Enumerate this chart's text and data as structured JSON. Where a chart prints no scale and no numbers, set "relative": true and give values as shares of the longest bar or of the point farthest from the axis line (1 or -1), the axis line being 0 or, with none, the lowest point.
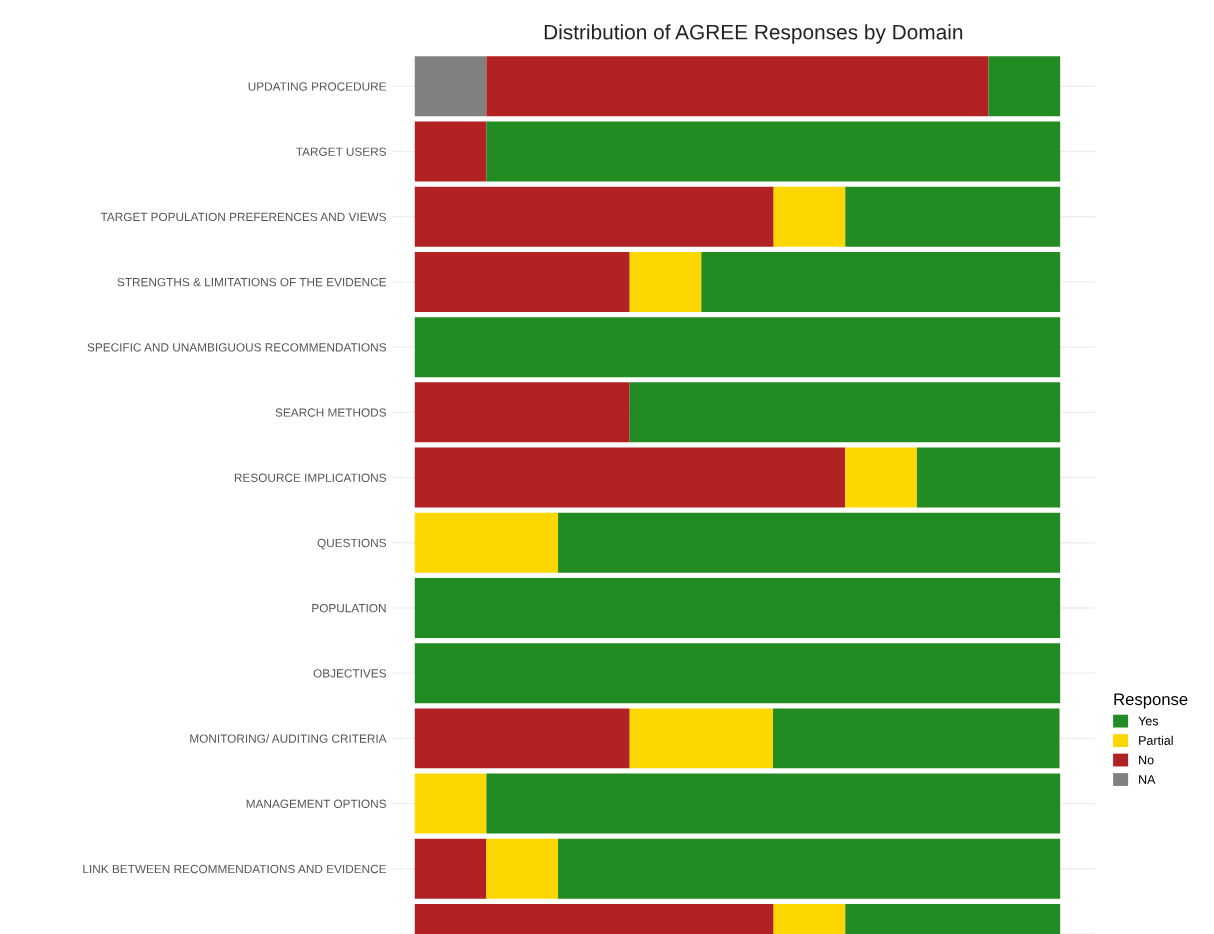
{
  "chart_data": {
    "type": "bar",
    "title": "Distribution of AGREE Responses by Domain",
    "orientation": "horizontal",
    "stacked": true,
    "relative": true,
    "grid": "y",
    "legend": "right",
    "legend_title": "Response",
    "categories": [
      "UPDATING PROCEDURE",
      "TARGET USERS",
      "TARGET POPULATION PREFERENCES AND VIEWS",
      "STRENGTHS & LIMITATIONS OF THE EVIDENCE",
      "SPECIFIC AND UNAMBIGUOUS RECOMMENDATIONS",
      "SEARCH METHODS",
      "RESOURCE IMPLICATIONS",
      "QUESTIONS",
      "POPULATION",
      "OBJECTIVES",
      "MONITORING/ AUDITING CRITERIA",
      "MANAGEMENT OPTIONS",
      "LINK BETWEEN RECOMMENDATIONS AND EVIDENCE",
      null
    ],
    "series": [
      {
        "name": "NA",
        "color": "#808080",
        "values": [
          0.111,
          0,
          0,
          0,
          0,
          0,
          0,
          0,
          0,
          0,
          0,
          0,
          0,
          0
        ]
      },
      {
        "name": "No",
        "color": "#b22222",
        "values": [
          0.778,
          0.111,
          0.556,
          0.333,
          0,
          0.333,
          0.667,
          0,
          0,
          0,
          0.333,
          0,
          0.111,
          0.556
        ]
      },
      {
        "name": "Partial",
        "color": "#ffd700",
        "values": [
          0,
          0,
          0.111,
          0.111,
          0,
          0,
          0.111,
          0.222,
          0,
          0,
          0.222,
          0.111,
          0.111,
          0.111
        ]
      },
      {
        "name": "Yes",
        "color": "#228b22",
        "values": [
          0.111,
          0.889,
          0.333,
          0.556,
          1,
          0.667,
          0.222,
          0.778,
          1,
          1,
          0.444,
          0.889,
          0.778,
          0.333
        ]
      }
    ]
  }
}
